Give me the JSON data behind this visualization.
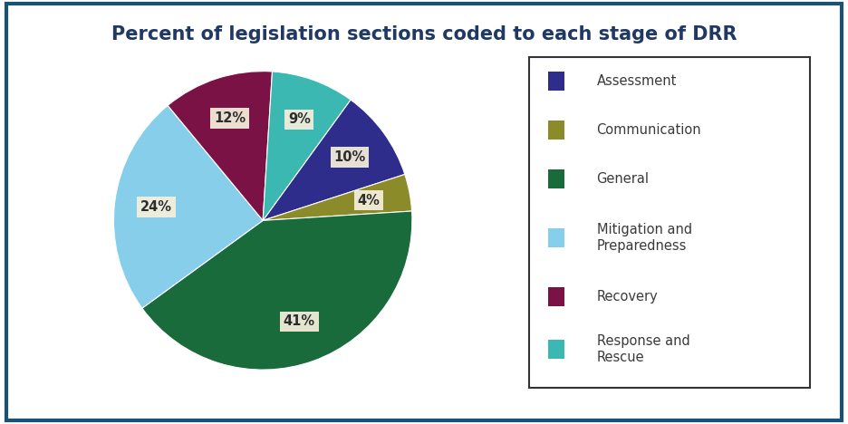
{
  "title": "Percent of legislation sections coded to each stage of DRR",
  "title_color": "#1F3864",
  "title_fontsize": 15,
  "background_color": "#FFFFFF",
  "border_color": "#1A5276",
  "legend_labels": [
    "Assessment",
    "Communication",
    "General",
    "Mitigation and\nPreparedness",
    "Recovery",
    "Response and\nRescue"
  ],
  "values": [
    10,
    4,
    41,
    24,
    12,
    9
  ],
  "colors": [
    "#2E2D8C",
    "#8B8B2A",
    "#1A6B3C",
    "#87CEEB",
    "#7B1245",
    "#3CB8B2"
  ],
  "startangle": 54,
  "pctdistance": 0.72
}
